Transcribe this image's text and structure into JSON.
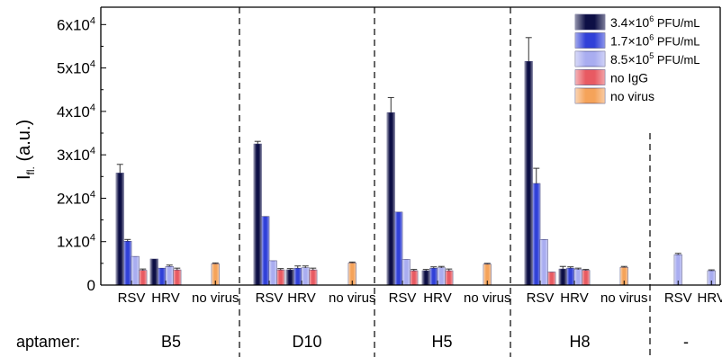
{
  "chart_data": {
    "type": "bar",
    "ylabel": "I",
    "ylabel_sub": "fl.",
    "ylabel_unit": "(a.u.)",
    "ylim": [
      0,
      64000
    ],
    "yticks": [
      {
        "value": 0,
        "label": "0"
      },
      {
        "value": 10000,
        "mantissa": "1x10",
        "exp": "4"
      },
      {
        "value": 20000,
        "mantissa": "2x10",
        "exp": "4"
      },
      {
        "value": 30000,
        "mantissa": "3x10",
        "exp": "4"
      },
      {
        "value": 40000,
        "mantissa": "4x10",
        "exp": "4"
      },
      {
        "value": 50000,
        "mantissa": "5x10",
        "exp": "4"
      },
      {
        "value": 60000,
        "mantissa": "6x10",
        "exp": "4"
      }
    ],
    "row_label": "aptamer:",
    "legend_position": "top-right",
    "series": [
      {
        "key": "c1",
        "name_base": "3.4×10",
        "name_exp": "6",
        "name_unit": " PFU/mL",
        "color": "#0d0f45"
      },
      {
        "key": "c2",
        "name_base": "1.7×10",
        "name_exp": "6",
        "name_unit": " PFU/mL",
        "color": "#3040d8"
      },
      {
        "key": "c3",
        "name_base": "8.5×10",
        "name_exp": "5",
        "name_unit": " PFU/mL",
        "color": "#a9adf0"
      },
      {
        "key": "noigg",
        "name_base": "no IgG",
        "name_exp": "",
        "name_unit": "",
        "color": "#e85a62"
      },
      {
        "key": "novirus",
        "name_base": "no virus",
        "name_exp": "",
        "name_unit": "",
        "color": "#f5a35a"
      }
    ],
    "groups": [
      {
        "aptamer": "B5",
        "categories": [
          {
            "label": "RSV",
            "bars": [
              {
                "s": "c1",
                "v": 25800,
                "e": 2000
              },
              {
                "s": "c2",
                "v": 10100,
                "e": 400
              },
              {
                "s": "c3",
                "v": 6600,
                "e": 0
              },
              {
                "s": "noigg",
                "v": 3400,
                "e": 300
              }
            ]
          },
          {
            "label": "HRV",
            "bars": [
              {
                "s": "c1",
                "v": 6000,
                "e": 0
              },
              {
                "s": "c2",
                "v": 3900,
                "e": 0
              },
              {
                "s": "c3",
                "v": 4300,
                "e": 300
              },
              {
                "s": "noigg",
                "v": 3500,
                "e": 400
              }
            ]
          },
          {
            "label": "no virus",
            "bars": [
              {
                "s": "novirus",
                "v": 4900,
                "e": 200
              }
            ]
          }
        ]
      },
      {
        "aptamer": "D10",
        "categories": [
          {
            "label": "RSV",
            "bars": [
              {
                "s": "c1",
                "v": 32500,
                "e": 600
              },
              {
                "s": "c2",
                "v": 15800,
                "e": 0
              },
              {
                "s": "c3",
                "v": 5600,
                "e": 0
              },
              {
                "s": "noigg",
                "v": 3500,
                "e": 300
              }
            ]
          },
          {
            "label": "HRV",
            "bars": [
              {
                "s": "c1",
                "v": 3500,
                "e": 300
              },
              {
                "s": "c2",
                "v": 3900,
                "e": 500
              },
              {
                "s": "c3",
                "v": 4000,
                "e": 400
              },
              {
                "s": "noigg",
                "v": 3500,
                "e": 400
              }
            ]
          },
          {
            "label": "no virus",
            "bars": [
              {
                "s": "novirus",
                "v": 5100,
                "e": 200
              }
            ]
          }
        ]
      },
      {
        "aptamer": "H5",
        "categories": [
          {
            "label": "RSV",
            "bars": [
              {
                "s": "c1",
                "v": 39700,
                "e": 3500
              },
              {
                "s": "c2",
                "v": 16800,
                "e": 0
              },
              {
                "s": "c3",
                "v": 5900,
                "e": 0
              },
              {
                "s": "noigg",
                "v": 3300,
                "e": 300
              }
            ]
          },
          {
            "label": "HRV",
            "bars": [
              {
                "s": "c1",
                "v": 3300,
                "e": 300
              },
              {
                "s": "c2",
                "v": 3900,
                "e": 300
              },
              {
                "s": "c3",
                "v": 4000,
                "e": 300
              },
              {
                "s": "noigg",
                "v": 3300,
                "e": 400
              }
            ]
          },
          {
            "label": "no virus",
            "bars": [
              {
                "s": "novirus",
                "v": 4800,
                "e": 200
              }
            ]
          }
        ]
      },
      {
        "aptamer": "H8",
        "categories": [
          {
            "label": "RSV",
            "bars": [
              {
                "s": "c1",
                "v": 51500,
                "e": 5500
              },
              {
                "s": "c2",
                "v": 23400,
                "e": 3500
              },
              {
                "s": "c3",
                "v": 10500,
                "e": 0
              },
              {
                "s": "noigg",
                "v": 3000,
                "e": 0
              }
            ]
          },
          {
            "label": "HRV",
            "bars": [
              {
                "s": "c1",
                "v": 3700,
                "e": 600
              },
              {
                "s": "c2",
                "v": 3900,
                "e": 300
              },
              {
                "s": "c3",
                "v": 3600,
                "e": 300
              },
              {
                "s": "noigg",
                "v": 3400,
                "e": 200
              }
            ]
          },
          {
            "label": "no virus",
            "bars": [
              {
                "s": "novirus",
                "v": 4100,
                "e": 200
              }
            ]
          }
        ]
      },
      {
        "aptamer": "-",
        "categories": [
          {
            "label": "RSV",
            "bars": [
              {
                "s": "c3",
                "v": 7000,
                "e": 300
              }
            ]
          },
          {
            "label": "HRV",
            "bars": [
              {
                "s": "c3",
                "v": 3300,
                "e": 200
              }
            ]
          }
        ]
      }
    ]
  }
}
